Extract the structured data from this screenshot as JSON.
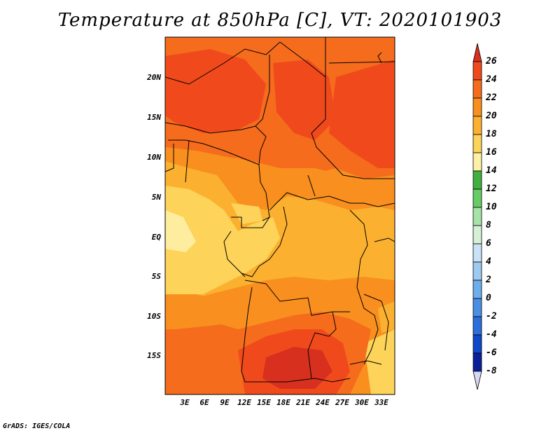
{
  "title": "Temperature at 850hPa [C], VT: 2020101903",
  "credit": "GrADS: IGES/COLA",
  "lat_ticks": [
    "20N",
    "15N",
    "10N",
    "5N",
    "EQ",
    "5S",
    "10S",
    "15S"
  ],
  "lon_ticks": [
    "3E",
    "6E",
    "9E",
    "12E",
    "15E",
    "18E",
    "21E",
    "24E",
    "27E",
    "30E",
    "33E"
  ],
  "colorbar": {
    "labels": [
      "26",
      "24",
      "22",
      "20",
      "18",
      "16",
      "14",
      "12",
      "10",
      "8",
      "6",
      "4",
      "2",
      "0",
      "-2",
      "-4",
      "-6",
      "-8"
    ],
    "colors": [
      "#d7301f",
      "#f04a1c",
      "#f56c1d",
      "#f88f1f",
      "#fbb12f",
      "#fdd35a",
      "#fef0a6",
      "#40b040",
      "#66cc66",
      "#a6e3a6",
      "#d6f0d6",
      "#c9e2f7",
      "#9ccaf0",
      "#6eaeea",
      "#4a8fe3",
      "#2a6fdb",
      "#1046c8",
      "#0a1f9a",
      "#041060"
    ]
  },
  "map_colors": {
    "c16": "#fdd35a",
    "c18": "#fbb12f",
    "c20": "#f88f1f",
    "c22": "#f56c1d",
    "c24": "#f04a1c",
    "c26": "#d7301f",
    "c14": "#fef0a6"
  }
}
